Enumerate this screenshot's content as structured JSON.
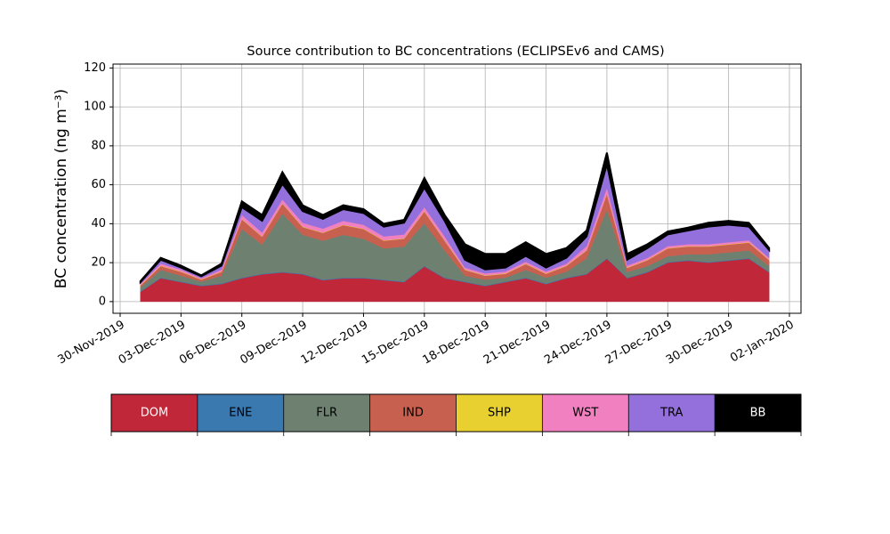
{
  "chart_data": {
    "type": "stacked_area",
    "title": "Source contribution to BC concentrations (ECLIPSEv6 and CAMS)",
    "ylabel": "BC concentration (ng m⁻³)",
    "x": [
      "2019-12-01",
      "2019-12-02",
      "2019-12-03",
      "2019-12-04",
      "2019-12-05",
      "2019-12-06",
      "2019-12-07",
      "2019-12-08",
      "2019-12-09",
      "2019-12-10",
      "2019-12-11",
      "2019-12-12",
      "2019-12-13",
      "2019-12-14",
      "2019-12-15",
      "2019-12-16",
      "2019-12-17",
      "2019-12-18",
      "2019-12-19",
      "2019-12-20",
      "2019-12-21",
      "2019-12-22",
      "2019-12-23",
      "2019-12-24",
      "2019-12-25",
      "2019-12-26",
      "2019-12-27",
      "2019-12-28",
      "2019-12-29",
      "2019-12-30",
      "2019-12-31",
      "2020-01-01"
    ],
    "series": [
      {
        "name": "DOM",
        "color": "#c0283a",
        "values": [
          5,
          12,
          10,
          8,
          9,
          12,
          14,
          15,
          14,
          11,
          12,
          12,
          11,
          10,
          18,
          12,
          10,
          8,
          10,
          12,
          9,
          12,
          14,
          22,
          12,
          15,
          20,
          21,
          20,
          21,
          22,
          15
        ]
      },
      {
        "name": "ENE",
        "color": "#3a78b0",
        "values": [
          0.3,
          0.3,
          0.3,
          0.3,
          0.3,
          0.3,
          0.3,
          0.3,
          0.3,
          0.3,
          0.3,
          0.3,
          0.3,
          0.3,
          0.3,
          0.3,
          0.3,
          0.3,
          0.3,
          0.3,
          0.3,
          0.3,
          0.3,
          0.3,
          0.3,
          0.3,
          0.3,
          0.3,
          0.3,
          0.3,
          0.3,
          0.3
        ]
      },
      {
        "name": "FLR",
        "color": "#6e8070",
        "values": [
          2,
          4,
          3,
          2,
          4,
          25,
          15,
          30,
          20,
          20,
          22,
          20,
          16,
          18,
          22,
          14,
          3,
          3,
          2,
          4,
          3,
          3,
          8,
          25,
          3,
          3,
          3,
          3,
          4,
          4,
          4,
          3
        ]
      },
      {
        "name": "IND",
        "color": "#c86050",
        "values": [
          1,
          2,
          2,
          1,
          2,
          5,
          4,
          5,
          4,
          4,
          5,
          5,
          4,
          4,
          6,
          5,
          3,
          2,
          2,
          3,
          2,
          3,
          4,
          8,
          2,
          3,
          4,
          4,
          4,
          4,
          4,
          3
        ]
      },
      {
        "name": "SHP",
        "color": "#e8d030",
        "values": [
          0.2,
          0.2,
          0.2,
          0.2,
          0.2,
          0.2,
          0.2,
          0.2,
          0.2,
          0.2,
          0.2,
          0.2,
          0.2,
          0.2,
          0.2,
          0.2,
          0.2,
          0.2,
          0.2,
          0.2,
          0.2,
          0.2,
          0.2,
          0.2,
          0.2,
          0.2,
          0.2,
          0.2,
          0.2,
          0.2,
          0.2,
          0.2
        ]
      },
      {
        "name": "WST",
        "color": "#f080c0",
        "values": [
          0.5,
          1,
          1,
          0.5,
          1,
          2,
          2,
          2,
          2,
          2,
          2,
          2,
          2,
          2,
          2,
          2,
          1,
          1,
          1,
          1,
          1,
          1,
          2,
          3,
          1,
          1,
          1,
          1,
          1,
          1,
          1,
          1
        ]
      },
      {
        "name": "TRA",
        "color": "#9370db",
        "values": [
          1,
          2,
          1,
          1,
          2,
          4,
          6,
          8,
          6,
          5,
          6,
          6,
          5,
          6,
          10,
          8,
          4,
          2,
          2,
          3,
          2,
          3,
          5,
          12,
          3,
          5,
          6,
          7,
          9,
          9,
          7,
          4
        ]
      },
      {
        "name": "BB",
        "color": "#000000",
        "values": [
          0.5,
          1,
          1,
          0.5,
          1,
          3,
          3,
          6,
          3,
          2,
          2,
          2,
          1.5,
          1.5,
          5,
          3,
          8,
          8,
          7,
          7,
          7,
          5,
          3,
          6,
          3,
          2,
          1.5,
          1.5,
          2,
          2,
          2,
          1
        ]
      }
    ],
    "xlim": [
      "2019-11-30",
      "2020-01-02"
    ],
    "xticks": [
      {
        "value": "2019-11-30",
        "label": "30-Nov-2019"
      },
      {
        "value": "2019-12-03",
        "label": "03-Dec-2019"
      },
      {
        "value": "2019-12-06",
        "label": "06-Dec-2019"
      },
      {
        "value": "2019-12-09",
        "label": "09-Dec-2019"
      },
      {
        "value": "2019-12-12",
        "label": "12-Dec-2019"
      },
      {
        "value": "2019-12-15",
        "label": "15-Dec-2019"
      },
      {
        "value": "2019-12-18",
        "label": "18-Dec-2019"
      },
      {
        "value": "2019-12-21",
        "label": "21-Dec-2019"
      },
      {
        "value": "2019-12-24",
        "label": "24-Dec-2019"
      },
      {
        "value": "2019-12-27",
        "label": "27-Dec-2019"
      },
      {
        "value": "2019-12-30",
        "label": "30-Dec-2019"
      },
      {
        "value": "2020-01-02",
        "label": "02-Jan-2020"
      }
    ],
    "ylim": [
      -6,
      122
    ],
    "yticks": [
      0,
      20,
      40,
      60,
      80,
      100,
      120
    ],
    "grid": true
  }
}
